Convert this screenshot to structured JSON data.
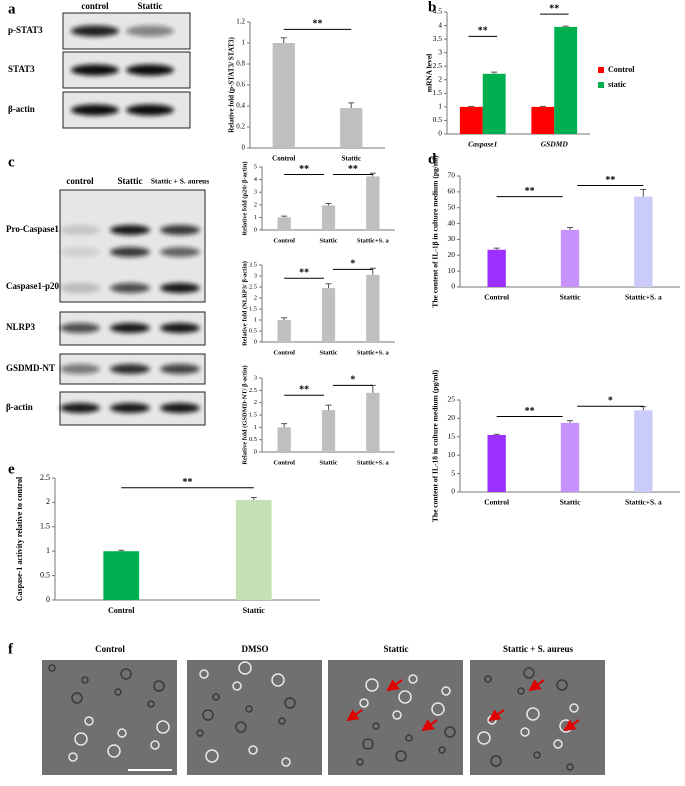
{
  "letters": [
    "a",
    "b",
    "c",
    "d",
    "e",
    "f"
  ],
  "blot_a": {
    "lanes": [
      "control",
      "Stattic"
    ],
    "rows": [
      "p-STAT3",
      "STAT3",
      "β-actin"
    ]
  },
  "blot_c": {
    "lanes": [
      "control",
      "Stattic",
      "Stattic + S. aureus"
    ],
    "rows": [
      "Pro-Caspase1",
      "Caspase1-p20",
      "NLRP3",
      "GSDMD-NT",
      "β-actin"
    ]
  },
  "micrographs": [
    "Control",
    "DMSO",
    "Stattic",
    "Stattic + S. aureus"
  ],
  "chart_data": [
    {
      "type": "bar",
      "ylabel": "Relative fold (p-STAT3/ STAT3)",
      "categories": [
        "Control",
        "Stattic"
      ],
      "values": [
        1.0,
        0.38
      ],
      "errors": [
        0.05,
        0.05
      ],
      "colors": [
        "#bfbfbf",
        "#bfbfbf"
      ],
      "ylim": [
        0,
        1.2
      ],
      "yticks": [
        0,
        0.2,
        0.4,
        0.6,
        0.8,
        1,
        1.2
      ],
      "annotations": [
        "**"
      ]
    },
    {
      "type": "grouped-bar",
      "ylabel": "mRNA level",
      "categories": [
        "Caspase1",
        "GSDMD"
      ],
      "series": [
        {
          "name": "Control",
          "color": "#ff0000",
          "values": [
            1.0,
            1.0
          ],
          "errors": [
            0.02,
            0.02
          ]
        },
        {
          "name": "static",
          "color": "#00b050",
          "values": [
            2.22,
            3.95
          ],
          "errors": [
            0.06,
            0.03
          ]
        }
      ],
      "ylim": [
        0,
        4.5
      ],
      "yticks": [
        0,
        0.5,
        1,
        1.5,
        2,
        2.5,
        3,
        3.5,
        4,
        4.5
      ],
      "annotations": [
        "**",
        "**"
      ],
      "legend": "right"
    },
    {
      "type": "bar",
      "ylabel": "Relative fold (p20/ β-actin)",
      "categories": [
        "Control",
        "Stattic",
        "Stattic+S. a"
      ],
      "values": [
        1.0,
        1.95,
        4.25
      ],
      "errors": [
        0.1,
        0.15,
        0.25
      ],
      "colors": [
        "#bfbfbf",
        "#bfbfbf",
        "#bfbfbf"
      ],
      "ylim": [
        0,
        5
      ],
      "yticks": [
        0,
        1,
        2,
        3,
        4,
        5
      ],
      "annotations": [
        "**",
        "**"
      ]
    },
    {
      "type": "bar",
      "ylabel": "Relative fold (NLRP3/ β-actin)",
      "categories": [
        "Control",
        "Stattic",
        "Stattic+S. a"
      ],
      "values": [
        1.0,
        2.45,
        3.05
      ],
      "errors": [
        0.1,
        0.2,
        0.3
      ],
      "colors": [
        "#bfbfbf",
        "#bfbfbf",
        "#bfbfbf"
      ],
      "ylim": [
        0,
        3.5
      ],
      "yticks": [
        0,
        0.5,
        1,
        1.5,
        2,
        2.5,
        3,
        3.5
      ],
      "annotations": [
        "**",
        "*"
      ]
    },
    {
      "type": "bar",
      "ylabel": "Relative fold (GSDMD-NT/ β-actin)",
      "categories": [
        "Control",
        "Stattic",
        "Stattic+S. a"
      ],
      "values": [
        1.0,
        1.7,
        2.4
      ],
      "errors": [
        0.15,
        0.2,
        0.3
      ],
      "colors": [
        "#bfbfbf",
        "#bfbfbf",
        "#bfbfbf"
      ],
      "ylim": [
        0,
        3
      ],
      "yticks": [
        0,
        0.5,
        1,
        1.5,
        2,
        2.5,
        3
      ],
      "annotations": [
        "**",
        "*"
      ]
    },
    {
      "type": "bar",
      "ylabel": "The content of IL-1β in culture medium (pg/ml)",
      "categories": [
        "Control",
        "Stattic",
        "Stattic+S. a"
      ],
      "values": [
        23.5,
        36,
        57
      ],
      "errors": [
        1,
        1.5,
        4.5
      ],
      "colors": [
        "#9b30ff",
        "#c792fc",
        "#cbcbfa"
      ],
      "ylim": [
        0,
        70
      ],
      "yticks": [
        0,
        10,
        20,
        30,
        40,
        50,
        60,
        70
      ],
      "annotations": [
        "**",
        "**"
      ]
    },
    {
      "type": "bar",
      "ylabel": "The content of IL-18 in culture medium (pg/ml)",
      "categories": [
        "Control",
        "Stattic",
        "Stattic+S. a"
      ],
      "values": [
        15.5,
        18.8,
        22.2
      ],
      "errors": [
        0.2,
        0.6,
        1
      ],
      "colors": [
        "#9b30ff",
        "#c792fc",
        "#cbcbfa"
      ],
      "ylim": [
        0,
        25
      ],
      "yticks": [
        0,
        5,
        10,
        15,
        20,
        25
      ],
      "annotations": [
        "**",
        "*"
      ]
    },
    {
      "type": "bar",
      "ylabel": "Caspase-1 activity relative to control",
      "categories": [
        "Control",
        "Stattic"
      ],
      "values": [
        1.0,
        2.05
      ],
      "errors": [
        0.02,
        0.05
      ],
      "colors": [
        "#00b050",
        "#c5e0b4"
      ],
      "ylim": [
        0,
        2.5
      ],
      "yticks": [
        0,
        0.5,
        1,
        1.5,
        2,
        2.5
      ],
      "annotations": [
        "**"
      ]
    }
  ]
}
